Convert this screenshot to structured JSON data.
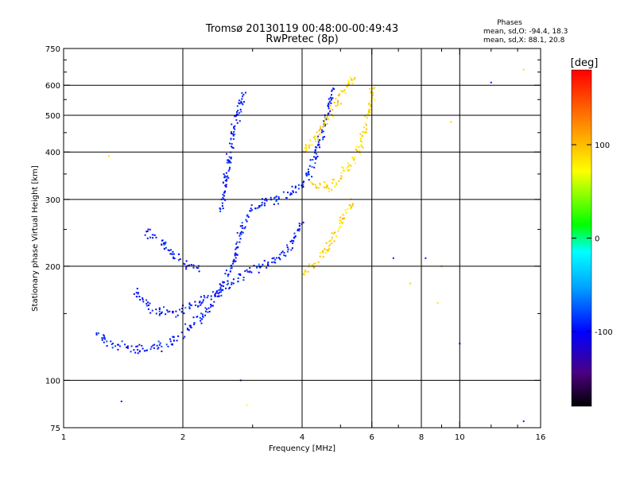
{
  "chart_data": {
    "type": "scatter",
    "title": "Tromsø 20130119 00:48:00-00:49:43",
    "subtitle": "RwPretec (8p)",
    "xlabel": "Frequency [MHz]",
    "ylabel": "Stationary phase Virtual Height [km]",
    "x_scale": "log",
    "y_scale": "log",
    "xlim": [
      1,
      16
    ],
    "ylim": [
      75,
      750
    ],
    "grid": true,
    "x_ticks": [
      1,
      2,
      4,
      6,
      8,
      10,
      16
    ],
    "x_tick_labels": [
      "1",
      "2",
      "4",
      "6",
      "8",
      "10",
      "16"
    ],
    "x_minor_ticks": [
      3,
      5,
      7,
      9,
      12,
      14
    ],
    "y_ticks": [
      75,
      100,
      200,
      300,
      400,
      500,
      600,
      750
    ],
    "y_tick_labels": [
      "75",
      "100",
      "200",
      "300",
      "400",
      "500",
      "600",
      "750"
    ],
    "y_minor_ticks": [
      150,
      250,
      350,
      450,
      550,
      650,
      700
    ],
    "stats": {
      "heading": "Phases",
      "line_o": "mean, sd,O: -94.4, 18.3",
      "line_x": "mean, sd,X:  88.1, 20.8"
    },
    "colorbar": {
      "unit": "[deg]",
      "range": [
        -180,
        180
      ],
      "ticks": [
        100,
        0,
        -100
      ],
      "tick_labels": [
        "100",
        "0",
        "-100"
      ]
    },
    "traces": [
      {
        "mode": "O",
        "phase_mean": -94.4,
        "phase_sd": 18.3,
        "points": [
          [
            1.2,
            133
          ],
          [
            1.3,
            126
          ],
          [
            1.4,
            123
          ],
          [
            1.5,
            121
          ],
          [
            1.6,
            121
          ],
          [
            1.7,
            122
          ],
          [
            1.8,
            124
          ],
          [
            1.9,
            128
          ],
          [
            2.0,
            133
          ],
          [
            2.1,
            138
          ],
          [
            2.2,
            145
          ],
          [
            2.3,
            152
          ],
          [
            2.4,
            162
          ],
          [
            2.5,
            175
          ],
          [
            2.6,
            190
          ],
          [
            2.7,
            210
          ],
          [
            2.8,
            240
          ],
          [
            2.9,
            270
          ],
          [
            3.0,
            285
          ],
          [
            3.2,
            292
          ],
          [
            3.4,
            298
          ],
          [
            3.6,
            305
          ],
          [
            3.8,
            315
          ],
          [
            4.0,
            330
          ],
          [
            4.2,
            360
          ],
          [
            4.4,
            420
          ],
          [
            4.6,
            500
          ],
          [
            4.8,
            580
          ]
        ]
      },
      {
        "mode": "O",
        "phase_mean": -94.4,
        "phase_sd": 18.3,
        "points": [
          [
            1.5,
            172
          ],
          [
            1.6,
            160
          ],
          [
            1.7,
            152
          ],
          [
            1.8,
            150
          ],
          [
            1.9,
            151
          ],
          [
            2.0,
            154
          ],
          [
            2.2,
            160
          ],
          [
            2.4,
            168
          ],
          [
            2.6,
            178
          ],
          [
            2.8,
            188
          ],
          [
            3.0,
            196
          ],
          [
            3.2,
            200
          ],
          [
            3.4,
            205
          ],
          [
            3.6,
            215
          ],
          [
            3.8,
            235
          ],
          [
            4.0,
            260
          ]
        ]
      },
      {
        "mode": "O",
        "phase_mean": -94.4,
        "phase_sd": 18.3,
        "points": [
          [
            1.6,
            250
          ],
          [
            1.7,
            240
          ],
          [
            1.8,
            228
          ],
          [
            1.9,
            215
          ],
          [
            2.0,
            205
          ],
          [
            2.1,
            200
          ],
          [
            2.2,
            198
          ]
        ]
      },
      {
        "mode": "O",
        "phase_mean": -94.4,
        "phase_sd": 18.3,
        "points": [
          [
            2.5,
            280
          ],
          [
            2.55,
            320
          ],
          [
            2.6,
            370
          ],
          [
            2.65,
            420
          ],
          [
            2.7,
            460
          ],
          [
            2.75,
            500
          ],
          [
            2.8,
            540
          ],
          [
            2.85,
            580
          ]
        ]
      },
      {
        "mode": "X",
        "phase_mean": 88.1,
        "phase_sd": 20.8,
        "points": [
          [
            4.2,
            330
          ],
          [
            4.5,
            320
          ],
          [
            4.8,
            330
          ],
          [
            5.0,
            345
          ],
          [
            5.2,
            360
          ],
          [
            5.4,
            380
          ],
          [
            5.6,
            410
          ],
          [
            5.8,
            470
          ],
          [
            6.0,
            540
          ],
          [
            6.0,
            600
          ]
        ]
      },
      {
        "mode": "X",
        "phase_mean": 88.1,
        "phase_sd": 20.8,
        "points": [
          [
            4.0,
            190
          ],
          [
            4.2,
            200
          ],
          [
            4.4,
            210
          ],
          [
            4.6,
            220
          ],
          [
            4.8,
            240
          ],
          [
            5.0,
            260
          ],
          [
            5.2,
            280
          ],
          [
            5.4,
            300
          ]
        ]
      },
      {
        "mode": "X",
        "phase_mean": 88.1,
        "phase_sd": 20.8,
        "points": [
          [
            4.0,
            400
          ],
          [
            4.3,
            430
          ],
          [
            4.6,
            480
          ],
          [
            4.9,
            540
          ],
          [
            5.2,
            600
          ],
          [
            5.5,
            640
          ]
        ]
      }
    ],
    "scattered": [
      [
        1.3,
        390
      ],
      [
        1.4,
        88
      ],
      [
        2.8,
        100
      ],
      [
        2.9,
        86
      ],
      [
        8.2,
        210
      ],
      [
        9.0,
        200
      ],
      [
        10.0,
        125
      ],
      [
        9.5,
        480
      ],
      [
        12.0,
        610
      ],
      [
        14.5,
        78
      ],
      [
        14.5,
        660
      ],
      [
        8.8,
        160
      ],
      [
        7.5,
        180
      ],
      [
        6.8,
        210
      ]
    ]
  }
}
